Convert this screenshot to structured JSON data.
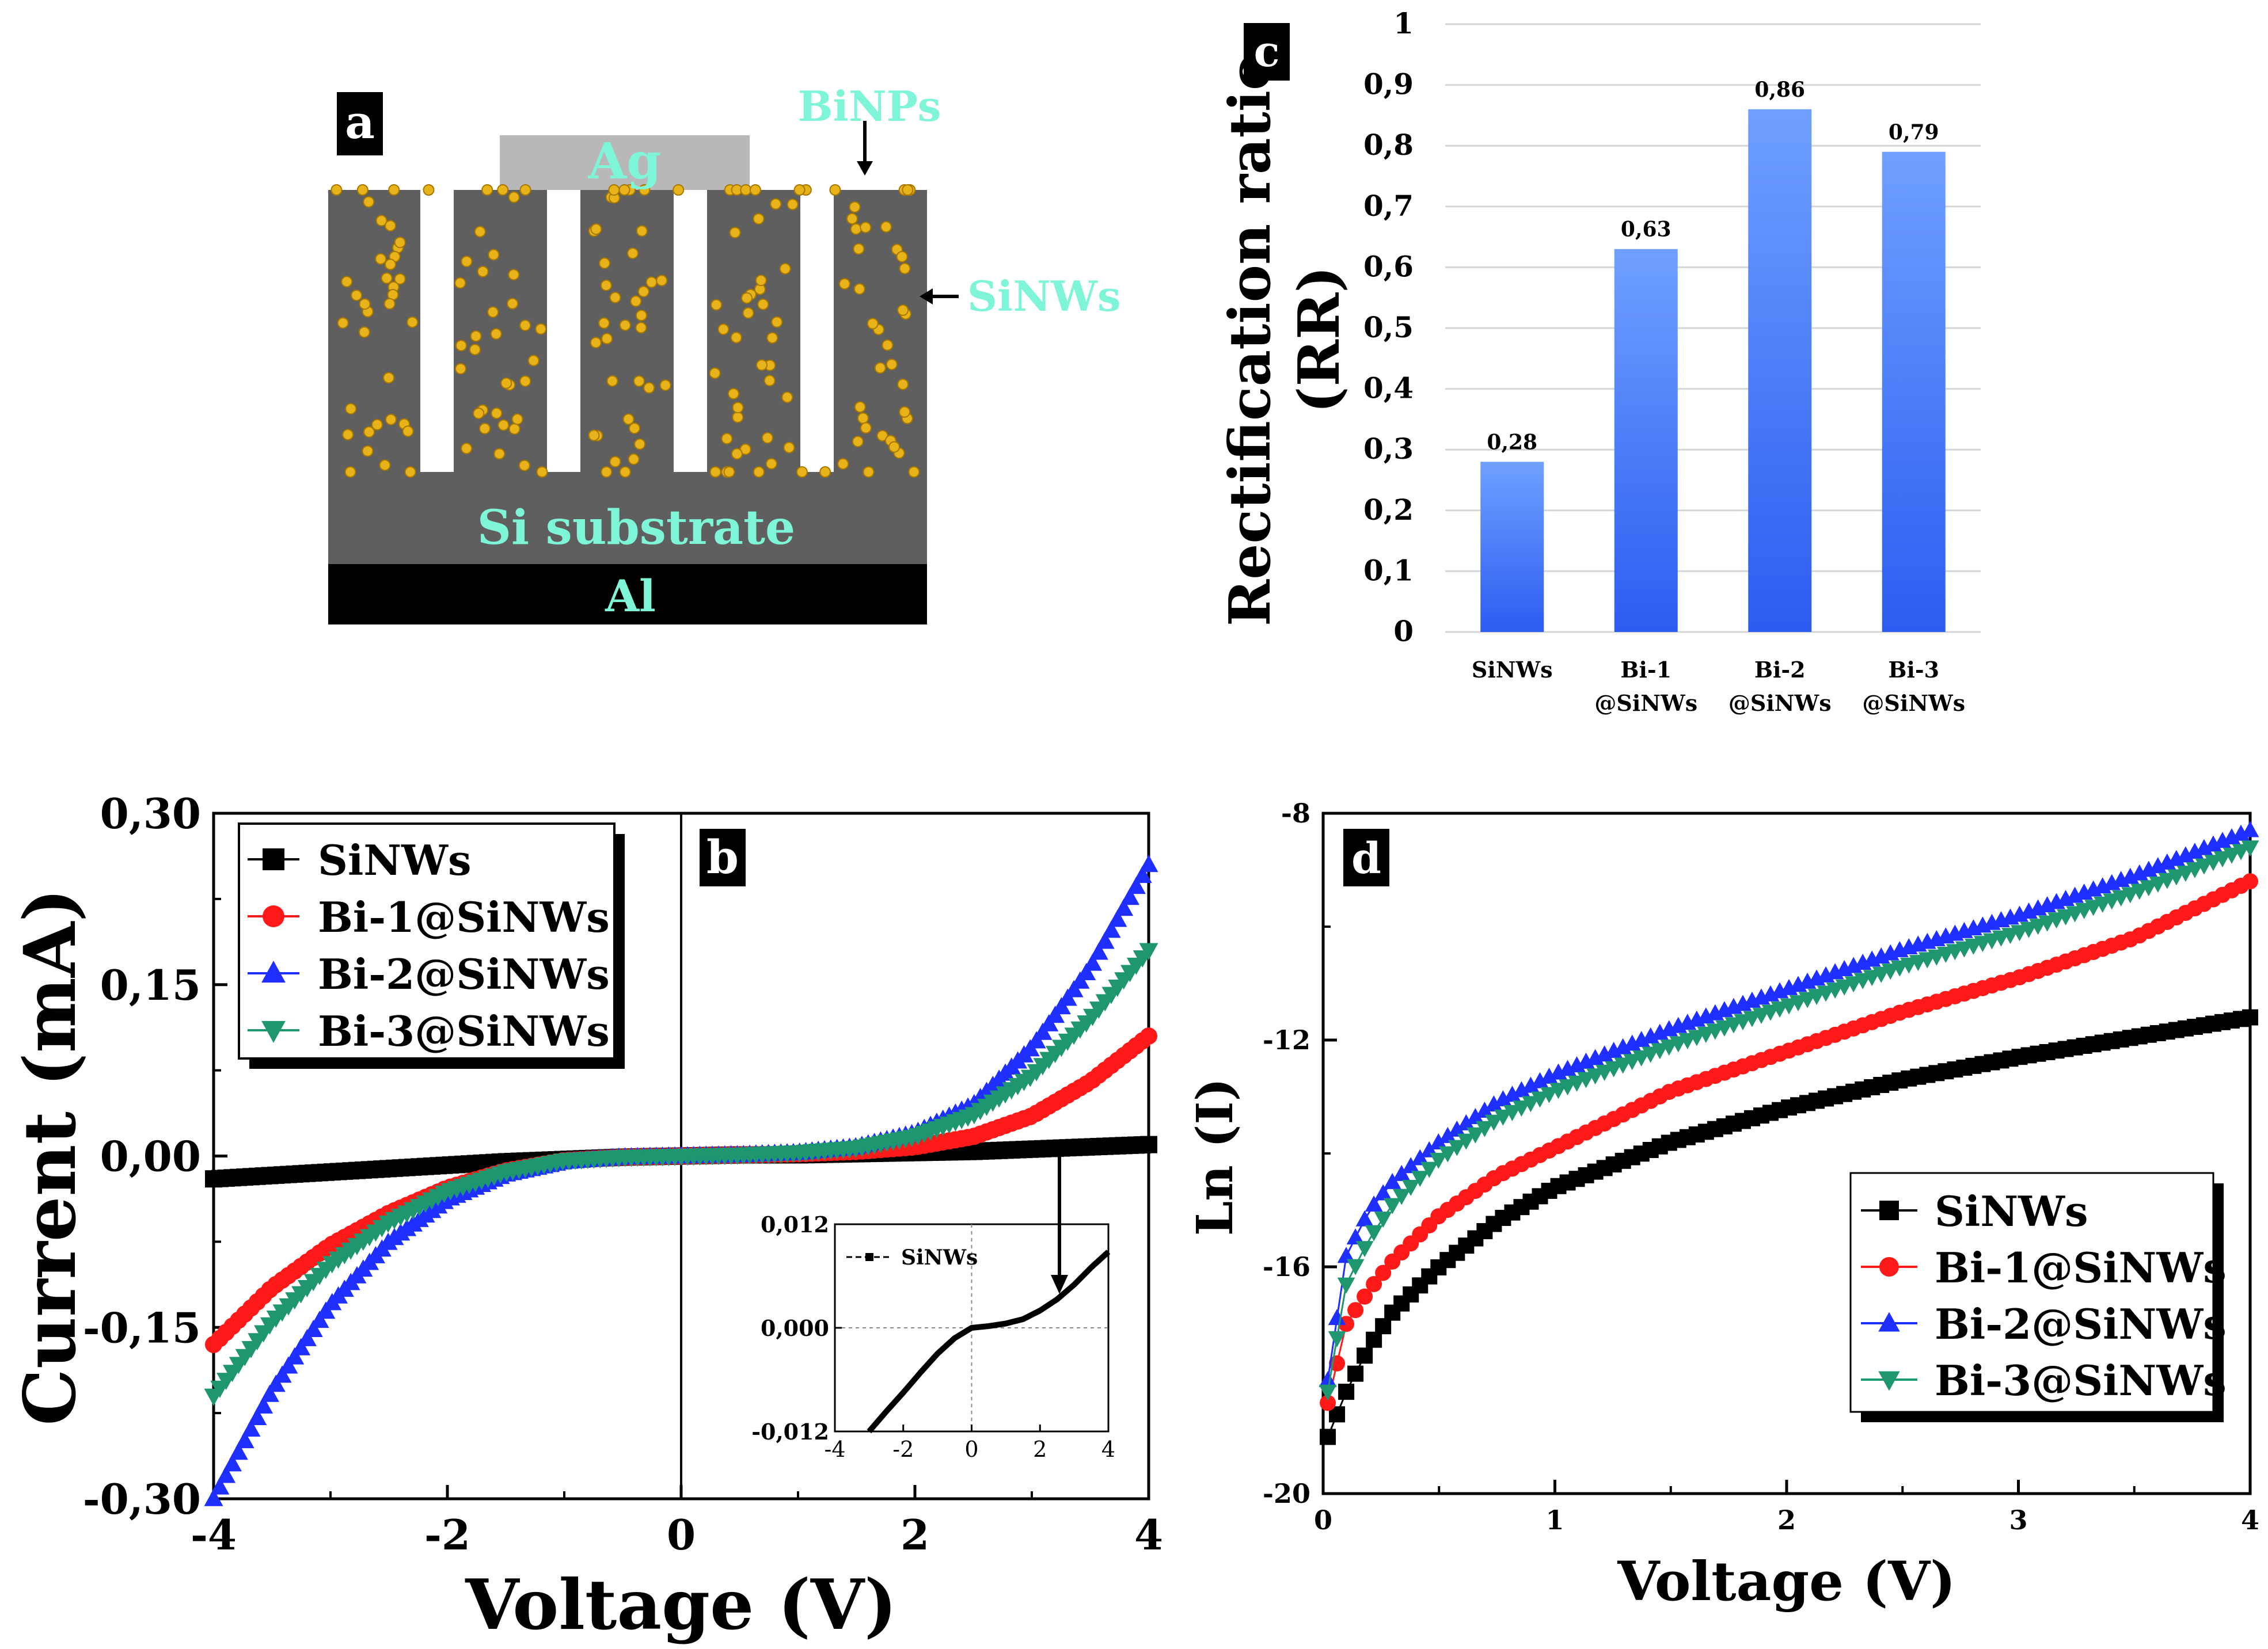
{
  "colors": {
    "black": "#000000",
    "red": "#ff1a1a",
    "blue": "#1f2fff",
    "green": "#1e9670",
    "bar_top": "#6fa0ff",
    "bar_bottom": "#2c5cf0",
    "dark_gray": "#5f5f5f",
    "ag_gray": "#b8b8b8",
    "np_gold": "#e8b21a",
    "cyan_label": "#7ff5d8"
  },
  "panel_a": {
    "tag": "a",
    "labels": {
      "ag": "Ag",
      "binps": "BiNPs",
      "sinws": "SiNWs",
      "substrate": "Si substrate",
      "al": "Al"
    }
  },
  "chart_data": [
    {
      "panel": "b",
      "type": "line",
      "tag": "b",
      "title": "",
      "xlabel": "Voltage (V)",
      "ylabel": "Current (mA)",
      "xlim": [
        -4,
        4
      ],
      "ylim": [
        -0.3,
        0.3
      ],
      "xticks": [
        "-4",
        "-2",
        "0",
        "2",
        "4"
      ],
      "yticks": [
        "-0,30",
        "-0,15",
        "0,00",
        "0,15",
        "0,30"
      ],
      "legend_position": "top-left",
      "x": [
        -4,
        -3.5,
        -3,
        -2.5,
        -2,
        -1.5,
        -1,
        -0.5,
        0,
        0.5,
        1,
        1.5,
        2,
        2.5,
        3,
        3.5,
        4
      ],
      "series": [
        {
          "name": "SiNWs",
          "marker": "square",
          "color": "#000000",
          "values": [
            -0.02,
            -0.017,
            -0.014,
            -0.011,
            -0.008,
            -0.005,
            -0.003,
            -0.001,
            0.0,
            0.001,
            0.001,
            0.002,
            0.003,
            0.004,
            0.006,
            0.008,
            0.01
          ]
        },
        {
          "name": "Bi-1@SiNWs",
          "marker": "circle",
          "color": "#ff1a1a",
          "values": [
            -0.165,
            -0.115,
            -0.078,
            -0.05,
            -0.028,
            -0.013,
            -0.004,
            -0.001,
            0.0,
            0.001,
            0.002,
            0.004,
            0.008,
            0.017,
            0.035,
            0.065,
            0.105
          ]
        },
        {
          "name": "Bi-2@SiNWs",
          "marker": "triangle-up",
          "color": "#1f2fff",
          "values": [
            -0.3,
            -0.205,
            -0.13,
            -0.075,
            -0.038,
            -0.016,
            -0.005,
            -0.001,
            0.0,
            0.001,
            0.003,
            0.008,
            0.02,
            0.045,
            0.095,
            0.165,
            0.255
          ]
        },
        {
          "name": "Bi-3@SiNWs",
          "marker": "triangle-down",
          "color": "#1e9670",
          "values": [
            -0.21,
            -0.145,
            -0.095,
            -0.058,
            -0.031,
            -0.014,
            -0.004,
            -0.001,
            0.0,
            0.001,
            0.003,
            0.007,
            0.017,
            0.036,
            0.07,
            0.12,
            0.18
          ]
        }
      ],
      "inset": {
        "type": "line",
        "xlim": [
          -4,
          4
        ],
        "ylim": [
          -0.012,
          0.012
        ],
        "xticks": [
          "-4",
          "-2",
          "0",
          "2",
          "4"
        ],
        "yticks": [
          "-0,012",
          "0,000",
          "0,012"
        ],
        "legend": "SiNWs",
        "x": [
          -3,
          -2.5,
          -2,
          -1.5,
          -1,
          -0.5,
          0,
          0.5,
          1,
          1.5,
          2,
          2.5,
          3,
          3.5,
          4
        ],
        "values": [
          -0.012,
          -0.0097,
          -0.0075,
          -0.0052,
          -0.003,
          -0.0012,
          0.0,
          0.0002,
          0.0005,
          0.001,
          0.002,
          0.0033,
          0.005,
          0.007,
          0.0088
        ]
      }
    },
    {
      "panel": "c",
      "type": "bar",
      "tag": "c",
      "title": "",
      "xlabel": "",
      "ylabel": "Rectification ratio (RR)",
      "ylabel_lines": [
        "Rectification ratio",
        "(RR)"
      ],
      "ylim": [
        0,
        1
      ],
      "yticks": [
        "0",
        "0,1",
        "0,2",
        "0,3",
        "0,4",
        "0,5",
        "0,6",
        "0,7",
        "0,8",
        "0,9",
        "1"
      ],
      "categories": [
        {
          "line1": "SiNWs",
          "line2": ""
        },
        {
          "line1": "Bi-1",
          "line2": "@SiNWs"
        },
        {
          "line1": "Bi-2",
          "line2": "@SiNWs"
        },
        {
          "line1": "Bi-3",
          "line2": "@SiNWs"
        }
      ],
      "values": [
        0.28,
        0.63,
        0.86,
        0.79
      ],
      "value_labels": [
        "0,28",
        "0,63",
        "0,86",
        "0,79"
      ],
      "grid": true
    },
    {
      "panel": "d",
      "type": "line",
      "tag": "d",
      "title": "",
      "xlabel": "Voltage (V)",
      "ylabel": "Ln (I)",
      "xlim": [
        0,
        4
      ],
      "ylim": [
        -20,
        -8
      ],
      "xticks": [
        "0",
        "1",
        "2",
        "3",
        "4"
      ],
      "yticks": [
        "-20",
        "-16",
        "-12",
        "-8"
      ],
      "legend_position": "bottom-right",
      "x": [
        0.02,
        0.1,
        0.2,
        0.3,
        0.5,
        0.75,
        1,
        1.5,
        2,
        2.5,
        3,
        3.5,
        4
      ],
      "series": [
        {
          "name": "SiNWs",
          "marker": "square",
          "color": "#000000",
          "values": [
            -19.0,
            -18.2,
            -17.4,
            -16.8,
            -16.0,
            -15.2,
            -14.6,
            -13.8,
            -13.2,
            -12.7,
            -12.3,
            -11.95,
            -11.6
          ]
        },
        {
          "name": "Bi-1@SiNWs",
          "marker": "circle",
          "color": "#ff1a1a",
          "values": [
            -18.4,
            -17.0,
            -16.4,
            -15.9,
            -15.1,
            -14.4,
            -13.9,
            -12.9,
            -12.2,
            -11.5,
            -10.9,
            -10.2,
            -9.2
          ]
        },
        {
          "name": "Bi-2@SiNWs",
          "marker": "triangle-up",
          "color": "#1f2fff",
          "values": [
            -18.0,
            -15.8,
            -15.0,
            -14.5,
            -13.8,
            -13.1,
            -12.6,
            -11.8,
            -11.1,
            -10.4,
            -9.8,
            -9.1,
            -8.3
          ]
        },
        {
          "name": "Bi-3@SiNWs",
          "marker": "triangle-down",
          "color": "#1e9670",
          "values": [
            -18.2,
            -16.3,
            -15.5,
            -14.9,
            -14.1,
            -13.4,
            -12.9,
            -12.1,
            -11.4,
            -10.7,
            -10.1,
            -9.4,
            -8.6
          ]
        }
      ]
    }
  ]
}
